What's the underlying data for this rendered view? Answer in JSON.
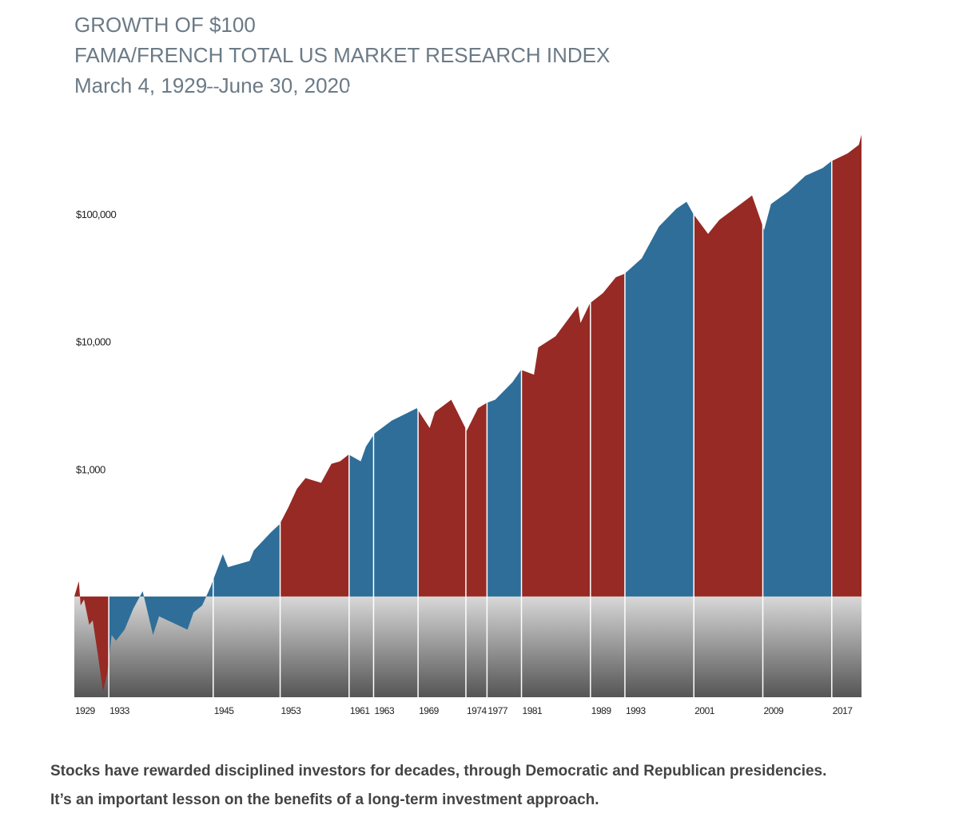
{
  "chart_data": {
    "type": "area",
    "title": "GROWTH OF $100",
    "subtitle": "FAMA/FRENCH TOTAL US MARKET RESEARCH INDEX",
    "date_range": "March 4, 1929–June 30, 2020",
    "caption": "Stocks have rewarded disciplined investors for decades, through Democratic and Republican presidencies. It’s an important lesson on the benefits of a long-term investment approach.",
    "log_scale": true,
    "baseline": 100,
    "x": [
      1929.17,
      1929.7,
      1929.9,
      1930.3,
      1930.9,
      1931.3,
      1931.9,
      1932.5,
      1933.0,
      1933.5,
      1934,
      1935,
      1936,
      1937.1,
      1938.3,
      1939,
      1940,
      1942.3,
      1943,
      1944,
      1945,
      1946.4,
      1947,
      1949.5,
      1950,
      1952,
      1953,
      1954,
      1955,
      1956,
      1957.8,
      1959,
      1960,
      1961,
      1962.4,
      1963,
      1964,
      1966,
      1968.9,
      1970.4,
      1971,
      1972.9,
      1974.7,
      1976,
      1977,
      1978,
      1980,
      1981,
      1982.5,
      1983,
      1985,
      1987.6,
      1987.9,
      1989,
      1990.5,
      1992,
      1993,
      1995,
      1997,
      1999,
      2000.2,
      2001,
      2002.7,
      2004,
      2007.8,
      2009.2,
      2010,
      2012,
      2014,
      2016,
      2017,
      2018.9,
      2020.2,
      2020.5
    ],
    "values": [
      100,
      132,
      85,
      95,
      60,
      65,
      35,
      18,
      25,
      50,
      45,
      55,
      80,
      110,
      50,
      70,
      65,
      55,
      75,
      85,
      120,
      215,
      170,
      190,
      230,
      320,
      370,
      500,
      700,
      850,
      780,
      1100,
      1150,
      1300,
      1150,
      1500,
      1900,
      2400,
      3000,
      2100,
      2800,
      3500,
      2000,
      3000,
      3300,
      3500,
      4800,
      6000,
      5500,
      9000,
      11000,
      19000,
      14000,
      20000,
      24000,
      32000,
      34000,
      45000,
      80000,
      110000,
      125000,
      100000,
      70000,
      90000,
      140000,
      75000,
      120000,
      150000,
      200000,
      230000,
      260000,
      300000,
      350000,
      420000
    ],
    "xlim": [
      1929.17,
      2020.5
    ],
    "xticks": [
      {
        "value": 1929.17,
        "label": "1929"
      },
      {
        "value": 1933.17,
        "label": "1933"
      },
      {
        "value": 1945.28,
        "label": "1945"
      },
      {
        "value": 1953.05,
        "label": "1953"
      },
      {
        "value": 1961.05,
        "label": "1961"
      },
      {
        "value": 1963.89,
        "label": "1963"
      },
      {
        "value": 1969.05,
        "label": "1969"
      },
      {
        "value": 1974.6,
        "label": "1974"
      },
      {
        "value": 1977.05,
        "label": "1977"
      },
      {
        "value": 1981.05,
        "label": "1981"
      },
      {
        "value": 1989.05,
        "label": "1989"
      },
      {
        "value": 1993.05,
        "label": "1993"
      },
      {
        "value": 2001.05,
        "label": "2001"
      },
      {
        "value": 2009.05,
        "label": "2009"
      },
      {
        "value": 2017.05,
        "label": "2017"
      }
    ],
    "term_colors": [
      "#972a24",
      "#2e6e99",
      "#2e6e99",
      "#972a24",
      "#2e6e99",
      "#2e6e99",
      "#972a24",
      "#972a24",
      "#2e6e99",
      "#972a24",
      "#972a24",
      "#2e6e99",
      "#972a24",
      "#2e6e99",
      "#972a24"
    ],
    "ylim": [
      10,
      1000000
    ],
    "yticks": [
      {
        "value": 1000,
        "label": "$1,000"
      },
      {
        "value": 10000,
        "label": "$10,000"
      },
      {
        "value": 100000,
        "label": "$100,000"
      }
    ],
    "grid": false
  }
}
